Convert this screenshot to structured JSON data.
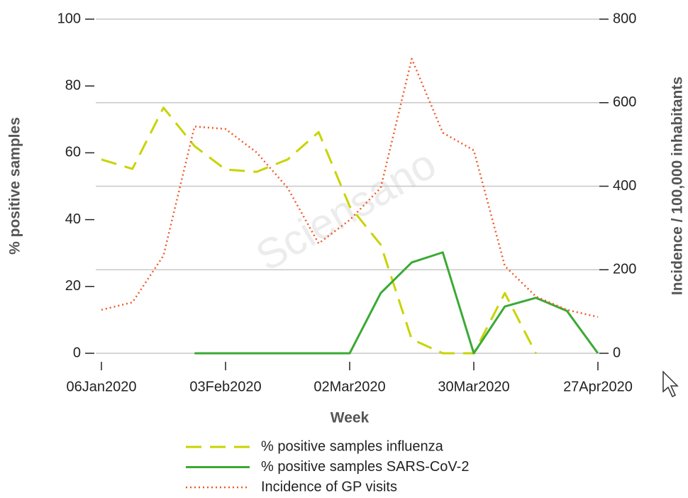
{
  "chart_data": {
    "type": "line",
    "watermark": "Sciensano",
    "x_label": "Week",
    "y_label": "% positive samples",
    "y2_label": "Incidence / 100,000 inhabitants",
    "categories": [
      "06Jan2020",
      null,
      null,
      null,
      "03Feb2020",
      null,
      null,
      null,
      "02Mar2020",
      null,
      null,
      null,
      "30Mar2020",
      null,
      null,
      null,
      "27Apr2020"
    ],
    "ylim": [
      0,
      100
    ],
    "yticks": [
      0,
      20,
      40,
      60,
      80,
      100
    ],
    "y2lim": [
      0,
      800
    ],
    "y2ticks": [
      0,
      200,
      400,
      600,
      800
    ],
    "grid": true,
    "legend": "bottom",
    "series": [
      {
        "name": "% positive samples influenza",
        "color": "#c8d400",
        "style": "dashed",
        "values": [
          58,
          55.2,
          73.5,
          62,
          55,
          54.3,
          58,
          66.2,
          44,
          32.5,
          4.2,
          0,
          0,
          18,
          0,
          null,
          null
        ]
      },
      {
        "name": "% positive samples SARS-CoV-2",
        "color": "#3aaa35",
        "style": "solid",
        "values": [
          null,
          null,
          null,
          0,
          0,
          0,
          0,
          0,
          0,
          18,
          27.2,
          30.2,
          0,
          14,
          16.6,
          12.7,
          0
        ]
      },
      {
        "name": "Incidence of GP visits",
        "color": "#f05a28",
        "style": "dotted",
        "axis": "y2",
        "values": [
          104,
          122,
          234,
          543,
          537,
          481,
          396,
          263,
          319,
          396,
          705,
          528,
          486,
          209,
          136,
          104,
          87
        ]
      }
    ]
  }
}
